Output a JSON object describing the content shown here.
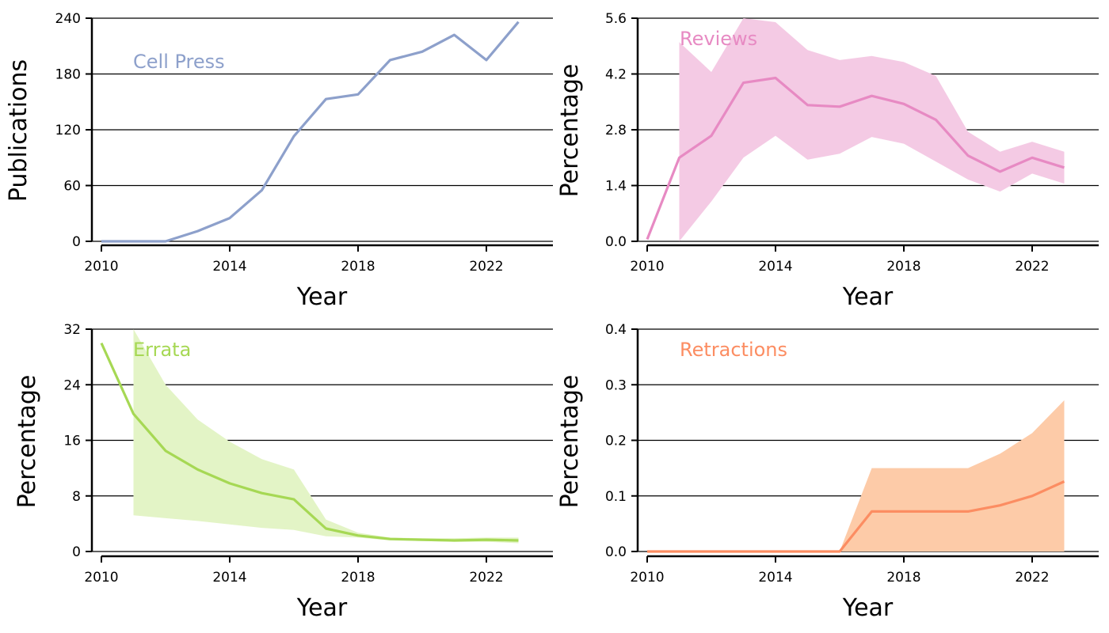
{
  "chart_data": [
    {
      "type": "line",
      "label": "Cell Press",
      "color": "#8DA0CB",
      "xlabel": "Year",
      "ylabel": "Publications",
      "xlim": [
        2010,
        2024
      ],
      "ylim": [
        0,
        240
      ],
      "xticks": [
        2010,
        2014,
        2018,
        2022
      ],
      "yticks": [
        0,
        60,
        120,
        180,
        240
      ],
      "ytick_labels": [
        "0",
        "60",
        "120",
        "180",
        "240"
      ],
      "grid": "horizontal",
      "band": false,
      "x": [
        2010,
        2011,
        2012,
        2013,
        2014,
        2015,
        2016,
        2017,
        2018,
        2019,
        2020,
        2021,
        2022,
        2023
      ],
      "y": [
        0,
        0,
        0,
        11,
        25,
        55,
        113,
        153,
        158,
        195,
        204,
        222,
        195,
        236
      ]
    },
    {
      "type": "area",
      "label": "Reviews",
      "color": "#E78AC3",
      "band_color": "#F4CAE4",
      "xlabel": "Year",
      "ylabel": "Percentage",
      "xlim": [
        2010,
        2024
      ],
      "ylim": [
        0,
        5.6
      ],
      "xticks": [
        2010,
        2014,
        2018,
        2022
      ],
      "yticks": [
        0,
        1.4,
        2.8,
        4.2,
        5.6
      ],
      "ytick_labels": [
        "0.0",
        "1.4",
        "2.8",
        "4.2",
        "5.6"
      ],
      "grid": "horizontal",
      "band": true,
      "x": [
        2010,
        2011,
        2012,
        2013,
        2014,
        2015,
        2016,
        2017,
        2018,
        2019,
        2020,
        2021,
        2022,
        2023
      ],
      "y": [
        0.05,
        2.1,
        2.65,
        3.98,
        4.1,
        3.42,
        3.38,
        3.65,
        3.45,
        3.05,
        2.15,
        1.75,
        2.1,
        1.85
      ],
      "y_lower": [
        null,
        0.0,
        1.0,
        2.1,
        2.65,
        2.05,
        2.2,
        2.62,
        2.45,
        2.0,
        1.55,
        1.25,
        1.7,
        1.45
      ],
      "y_upper": [
        null,
        5.0,
        4.25,
        5.75,
        5.5,
        4.8,
        4.55,
        4.65,
        4.5,
        4.15,
        2.75,
        2.25,
        2.5,
        2.25
      ]
    },
    {
      "type": "area",
      "label": "Errata",
      "color": "#A6D854",
      "band_color": "#E3F4C6",
      "xlabel": "Year",
      "ylabel": "Percentage",
      "xlim": [
        2010,
        2024
      ],
      "ylim": [
        0,
        32
      ],
      "xticks": [
        2010,
        2014,
        2018,
        2022
      ],
      "yticks": [
        0,
        8,
        16,
        24,
        32
      ],
      "ytick_labels": [
        "0",
        "8",
        "16",
        "24",
        "32"
      ],
      "grid": "horizontal",
      "band": true,
      "x": [
        2010,
        2011,
        2012,
        2013,
        2014,
        2015,
        2016,
        2017,
        2018,
        2019,
        2020,
        2021,
        2022,
        2023
      ],
      "y": [
        30.0,
        19.8,
        14.5,
        11.8,
        9.8,
        8.4,
        7.5,
        3.3,
        2.3,
        1.8,
        1.7,
        1.6,
        1.7,
        1.6
      ],
      "y_lower": [
        null,
        5.2,
        4.8,
        4.4,
        3.9,
        3.4,
        3.1,
        2.2,
        2.0,
        1.6,
        1.5,
        1.4,
        1.4,
        1.2
      ],
      "y_upper": [
        null,
        32.0,
        24.0,
        19.0,
        15.8,
        13.3,
        11.8,
        4.6,
        2.7,
        2.0,
        1.9,
        1.9,
        2.0,
        2.0
      ]
    },
    {
      "type": "area",
      "label": "Retractions",
      "color": "#FC8D62",
      "band_color": "#FDCBA8",
      "xlabel": "Year",
      "ylabel": "Percentage",
      "xlim": [
        2010,
        2024
      ],
      "ylim": [
        0,
        0.4
      ],
      "xticks": [
        2010,
        2014,
        2018,
        2022
      ],
      "yticks": [
        0,
        0.1,
        0.2,
        0.3,
        0.4
      ],
      "ytick_labels": [
        "0.0",
        "0.1",
        "0.2",
        "0.3",
        "0.4"
      ],
      "grid": "horizontal",
      "band": true,
      "x": [
        2010,
        2011,
        2012,
        2013,
        2014,
        2015,
        2016,
        2017,
        2018,
        2019,
        2020,
        2021,
        2022,
        2023
      ],
      "y": [
        0.0,
        0.0,
        0.0,
        0.0,
        0.0,
        0.0,
        0.0,
        0.072,
        0.072,
        0.072,
        0.072,
        0.083,
        0.1,
        0.126
      ],
      "y_lower": [
        null,
        0.0,
        0.0,
        0.0,
        0.0,
        0.0,
        0.0,
        0.0,
        0.0,
        0.0,
        0.0,
        0.0,
        0.0,
        0.0
      ],
      "y_upper": [
        null,
        0.0,
        0.0,
        0.0,
        0.0,
        0.0,
        0.0,
        0.15,
        0.15,
        0.15,
        0.15,
        0.176,
        0.213,
        0.272
      ]
    }
  ]
}
